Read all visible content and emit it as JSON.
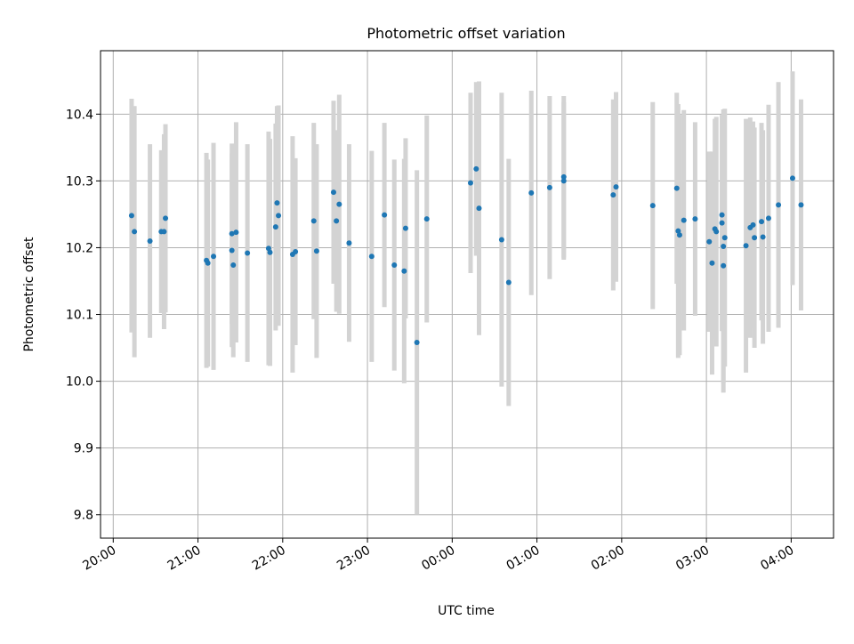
{
  "chart_data": {
    "type": "scatter",
    "title": "Photometric offset variation",
    "xlabel": "UTC time",
    "ylabel": "Photometric offset",
    "x_tick_labels": [
      "20:00",
      "21:00",
      "22:00",
      "23:00",
      "00:00",
      "01:00",
      "02:00",
      "03:00",
      "04:00"
    ],
    "x_tick_hours": [
      20,
      21,
      22,
      23,
      24,
      25,
      26,
      27,
      28
    ],
    "xlim_hours": [
      19.85,
      28.5
    ],
    "y_ticks": [
      9.8,
      9.9,
      10.0,
      10.1,
      10.2,
      10.3,
      10.4
    ],
    "y_tick_labels": [
      "9.8",
      "9.9",
      "10.0",
      "10.1",
      "10.2",
      "10.3",
      "10.4"
    ],
    "ylim": [
      9.765,
      10.495
    ],
    "grid": true,
    "colors": {
      "point": "#1f77b4",
      "errorbar": "#d3d3d3",
      "grid": "#b0b0b0"
    },
    "points": [
      {
        "t": "20:13",
        "y": 10.248,
        "err": 0.175
      },
      {
        "t": "20:15",
        "y": 10.224,
        "err": 0.188
      },
      {
        "t": "20:26",
        "y": 10.21,
        "err": 0.145
      },
      {
        "t": "20:34",
        "y": 10.224,
        "err": 0.122
      },
      {
        "t": "20:36",
        "y": 10.224,
        "err": 0.146
      },
      {
        "t": "20:37",
        "y": 10.244,
        "err": 0.141
      },
      {
        "t": "21:06",
        "y": 10.181,
        "err": 0.161
      },
      {
        "t": "21:07",
        "y": 10.177,
        "err": 0.155
      },
      {
        "t": "21:11",
        "y": 10.187,
        "err": 0.17
      },
      {
        "t": "21:24",
        "y": 10.221,
        "err": 0.135
      },
      {
        "t": "21:24",
        "y": 10.196,
        "err": 0.145
      },
      {
        "t": "21:25",
        "y": 10.174,
        "err": 0.138
      },
      {
        "t": "21:27",
        "y": 10.223,
        "err": 0.165
      },
      {
        "t": "21:35",
        "y": 10.192,
        "err": 0.163
      },
      {
        "t": "21:50",
        "y": 10.199,
        "err": 0.175
      },
      {
        "t": "21:51",
        "y": 10.193,
        "err": 0.17
      },
      {
        "t": "21:55",
        "y": 10.231,
        "err": 0.155
      },
      {
        "t": "21:56",
        "y": 10.267,
        "err": 0.145
      },
      {
        "t": "21:57",
        "y": 10.248,
        "err": 0.165
      },
      {
        "t": "22:07",
        "y": 10.19,
        "err": 0.177
      },
      {
        "t": "22:09",
        "y": 10.194,
        "err": 0.14
      },
      {
        "t": "22:22",
        "y": 10.24,
        "err": 0.147
      },
      {
        "t": "22:24",
        "y": 10.195,
        "err": 0.16
      },
      {
        "t": "22:36",
        "y": 10.283,
        "err": 0.137
      },
      {
        "t": "22:38",
        "y": 10.24,
        "err": 0.136
      },
      {
        "t": "22:40",
        "y": 10.265,
        "err": 0.164
      },
      {
        "t": "22:47",
        "y": 10.207,
        "err": 0.148
      },
      {
        "t": "23:03",
        "y": 10.187,
        "err": 0.158
      },
      {
        "t": "23:12",
        "y": 10.249,
        "err": 0.138
      },
      {
        "t": "23:19",
        "y": 10.174,
        "err": 0.158
      },
      {
        "t": "23:26",
        "y": 10.165,
        "err": 0.168
      },
      {
        "t": "23:27",
        "y": 10.229,
        "err": 0.135
      },
      {
        "t": "23:35",
        "y": 10.058,
        "err": 0.258
      },
      {
        "t": "23:42",
        "y": 10.243,
        "err": 0.155
      },
      {
        "t": "00:13",
        "y": 10.297,
        "err": 0.135
      },
      {
        "t": "00:17",
        "y": 10.318,
        "err": 0.13
      },
      {
        "t": "00:19",
        "y": 10.259,
        "err": 0.19
      },
      {
        "t": "00:35",
        "y": 10.212,
        "err": 0.22
      },
      {
        "t": "00:40",
        "y": 10.148,
        "err": 0.185
      },
      {
        "t": "00:56",
        "y": 10.282,
        "err": 0.153
      },
      {
        "t": "01:09",
        "y": 10.29,
        "err": 0.137
      },
      {
        "t": "01:19",
        "y": 10.306,
        "err": 0.121
      },
      {
        "t": "01:19",
        "y": 10.3,
        "err": 0.118
      },
      {
        "t": "01:54",
        "y": 10.279,
        "err": 0.143
      },
      {
        "t": "01:56",
        "y": 10.291,
        "err": 0.142
      },
      {
        "t": "02:22",
        "y": 10.263,
        "err": 0.155
      },
      {
        "t": "02:39",
        "y": 10.289,
        "err": 0.143
      },
      {
        "t": "02:40",
        "y": 10.225,
        "err": 0.19
      },
      {
        "t": "02:41",
        "y": 10.219,
        "err": 0.18
      },
      {
        "t": "02:44",
        "y": 10.241,
        "err": 0.165
      },
      {
        "t": "02:52",
        "y": 10.243,
        "err": 0.145
      },
      {
        "t": "03:02",
        "y": 10.209,
        "err": 0.135
      },
      {
        "t": "03:04",
        "y": 10.177,
        "err": 0.167
      },
      {
        "t": "03:06",
        "y": 10.228,
        "err": 0.165
      },
      {
        "t": "03:07",
        "y": 10.224,
        "err": 0.172
      },
      {
        "t": "03:11",
        "y": 10.249,
        "err": 0.147
      },
      {
        "t": "03:11",
        "y": 10.237,
        "err": 0.162
      },
      {
        "t": "03:12",
        "y": 10.173,
        "err": 0.19
      },
      {
        "t": "03:12",
        "y": 10.202,
        "err": 0.205
      },
      {
        "t": "03:13",
        "y": 10.215,
        "err": 0.193
      },
      {
        "t": "03:28",
        "y": 10.203,
        "err": 0.19
      },
      {
        "t": "03:31",
        "y": 10.23,
        "err": 0.165
      },
      {
        "t": "03:33",
        "y": 10.234,
        "err": 0.155
      },
      {
        "t": "03:34",
        "y": 10.215,
        "err": 0.165
      },
      {
        "t": "03:39",
        "y": 10.239,
        "err": 0.148
      },
      {
        "t": "03:40",
        "y": 10.216,
        "err": 0.16
      },
      {
        "t": "03:44",
        "y": 10.244,
        "err": 0.17
      },
      {
        "t": "03:51",
        "y": 10.264,
        "err": 0.184
      },
      {
        "t": "04:01",
        "y": 10.304,
        "err": 0.16
      },
      {
        "t": "04:07",
        "y": 10.264,
        "err": 0.158
      }
    ]
  }
}
